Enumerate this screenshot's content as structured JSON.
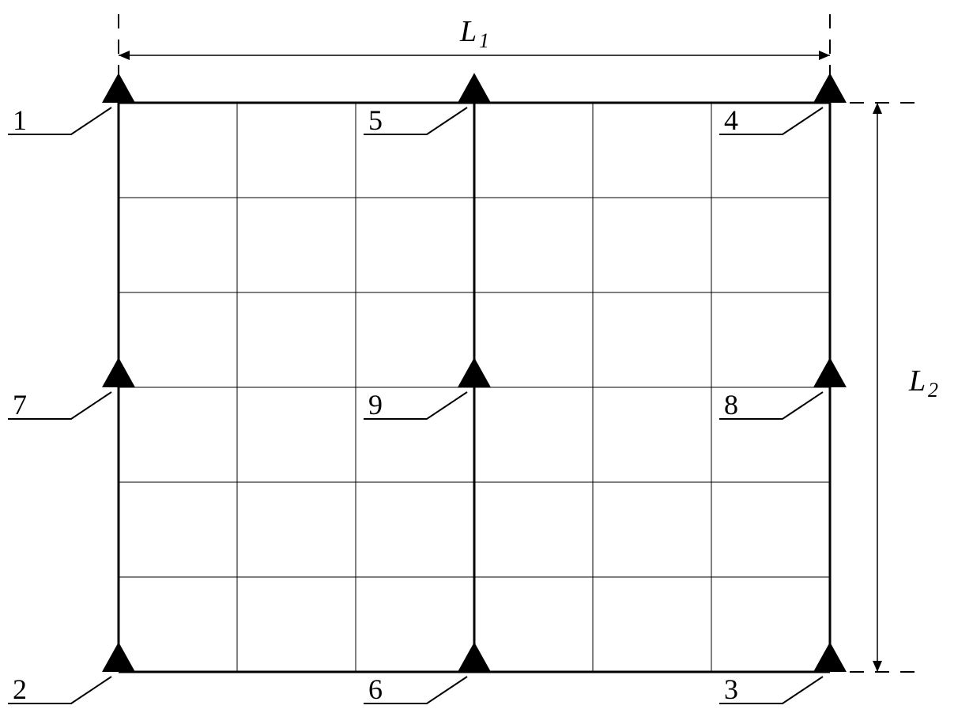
{
  "diagram": {
    "type": "grid-schematic",
    "background_color": "#ffffff",
    "stroke_color": "#000000",
    "grid": {
      "xmin": 150,
      "xmax": 1050,
      "ymin": 130,
      "ymax": 850,
      "cols": 6,
      "rows": 6,
      "outer_stroke_width": 3,
      "inner_stroke_width": 1,
      "bold_vertical_indices": [
        0,
        3,
        6
      ],
      "bold_horizontal_indices": [
        0,
        6
      ]
    },
    "dimensions": {
      "L1": {
        "label_main": "L",
        "label_sub": "1",
        "fontsize": 38
      },
      "L2": {
        "label_main": "L",
        "label_sub": "2",
        "fontsize": 38
      }
    },
    "triangle_marker": {
      "size": 42,
      "fill": "#000000"
    },
    "nodes": [
      {
        "id": "1",
        "col": 0,
        "row": 0,
        "label": "1",
        "leader_side": "left"
      },
      {
        "id": "2",
        "col": 0,
        "row": 6,
        "label": "2",
        "leader_side": "left"
      },
      {
        "id": "3",
        "col": 6,
        "row": 6,
        "label": "3",
        "leader_side": "left"
      },
      {
        "id": "4",
        "col": 6,
        "row": 0,
        "label": "4",
        "leader_side": "left"
      },
      {
        "id": "5",
        "col": 3,
        "row": 0,
        "label": "5",
        "leader_side": "left"
      },
      {
        "id": "6",
        "col": 3,
        "row": 6,
        "label": "6",
        "leader_side": "left"
      },
      {
        "id": "7",
        "col": 0,
        "row": 3,
        "label": "7",
        "leader_side": "left"
      },
      {
        "id": "8",
        "col": 6,
        "row": 3,
        "label": "8",
        "leader_side": "left"
      },
      {
        "id": "9",
        "col": 3,
        "row": 3,
        "label": "9",
        "leader_side": "left"
      }
    ],
    "leader_geom": {
      "diag_dx": -60,
      "diag_dy": 40,
      "horiz_len": 80,
      "text_dx": -6,
      "text_dy": -6
    }
  }
}
